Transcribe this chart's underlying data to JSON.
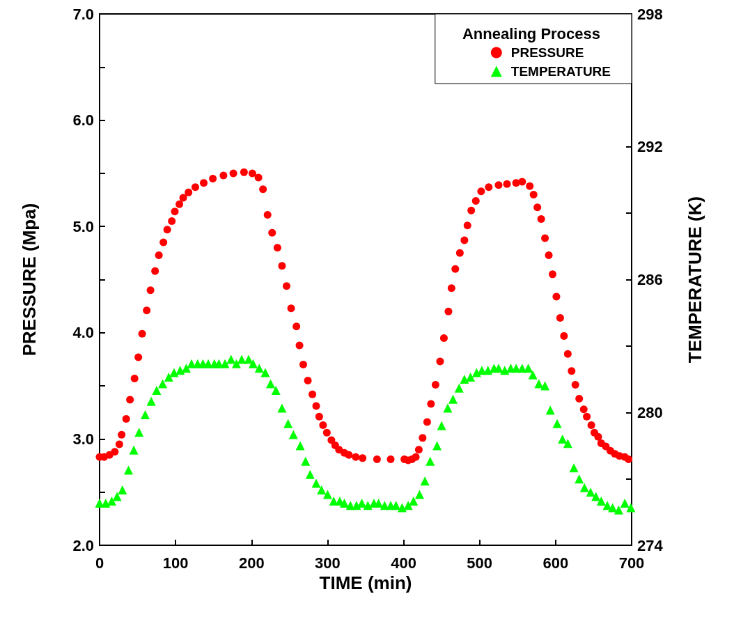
{
  "chart_data": {
    "type": "scatter",
    "xlabel": "TIME (min)",
    "ylabel": "PRESSURE (Mpa)",
    "y2label": "TEMPERATURE (K)",
    "legend_title": "Annealing Process",
    "legend": "top right",
    "grid": false,
    "xlim": [
      0,
      700
    ],
    "xticks": [
      0,
      100,
      200,
      300,
      400,
      500,
      600,
      700
    ],
    "ylim": [
      2,
      7
    ],
    "yticks": [
      {
        "value": 2,
        "label": "2.0"
      },
      {
        "value": 2.5,
        "label": null
      },
      {
        "value": 3,
        "label": "3.0"
      },
      {
        "value": 3.5,
        "label": null
      },
      {
        "value": 4,
        "label": "4.0"
      },
      {
        "value": 4.5,
        "label": null
      },
      {
        "value": 5,
        "label": "5.0"
      },
      {
        "value": 5.5,
        "label": null
      },
      {
        "value": 6,
        "label": "6.0"
      },
      {
        "value": 6.5,
        "label": null
      },
      {
        "value": 7,
        "label": "7.0"
      }
    ],
    "y2lim": [
      274,
      298
    ],
    "y2ticks": [
      274,
      {
        "value": 277,
        "label": null
      },
      280,
      {
        "value": 283,
        "label": null
      },
      286,
      {
        "value": 289,
        "label": null
      },
      292,
      {
        "value": 295,
        "label": null
      },
      298
    ],
    "series": [
      {
        "name": "PRESSURE",
        "color": "#ff0000",
        "marker": "circle",
        "x": [
          0,
          6,
          13,
          20,
          26,
          29,
          35,
          40,
          46,
          51,
          56,
          62,
          67,
          73,
          78,
          84,
          89,
          95,
          99,
          105,
          110,
          117,
          126,
          137,
          149,
          163,
          176,
          190,
          201,
          209,
          215,
          221,
          227,
          234,
          240,
          246,
          252,
          259,
          263,
          268,
          274,
          280,
          285,
          289,
          294,
          299,
          305,
          310,
          315,
          322,
          328,
          337,
          346,
          365,
          383,
          401,
          406,
          411,
          416,
          420,
          425,
          431,
          436,
          442,
          448,
          453,
          459,
          463,
          468,
          474,
          480,
          484,
          489,
          495,
          502,
          512,
          525,
          536,
          548,
          556,
          566,
          571,
          576,
          581,
          586,
          591,
          596,
          601,
          606,
          611,
          616,
          621,
          626,
          631,
          637,
          641,
          647,
          651,
          656,
          660,
          666,
          672,
          678,
          684,
          691,
          696
        ],
        "values": [
          2.83,
          2.83,
          2.85,
          2.88,
          2.95,
          3.04,
          3.19,
          3.37,
          3.57,
          3.77,
          3.99,
          4.21,
          4.4,
          4.58,
          4.73,
          4.85,
          4.97,
          5.05,
          5.14,
          5.21,
          5.27,
          5.32,
          5.37,
          5.41,
          5.45,
          5.48,
          5.5,
          5.51,
          5.5,
          5.46,
          5.35,
          5.11,
          4.94,
          4.8,
          4.63,
          4.44,
          4.23,
          4.06,
          3.88,
          3.7,
          3.55,
          3.42,
          3.31,
          3.21,
          3.13,
          3.06,
          2.99,
          2.94,
          2.9,
          2.87,
          2.85,
          2.83,
          2.82,
          2.81,
          2.81,
          2.81,
          2.8,
          2.81,
          2.83,
          2.9,
          3.01,
          3.16,
          3.33,
          3.51,
          3.73,
          3.95,
          4.2,
          4.42,
          4.6,
          4.75,
          4.87,
          5.01,
          5.15,
          5.24,
          5.33,
          5.37,
          5.39,
          5.4,
          5.41,
          5.42,
          5.38,
          5.3,
          5.18,
          5.07,
          4.89,
          4.73,
          4.55,
          4.34,
          4.14,
          3.97,
          3.8,
          3.64,
          3.51,
          3.38,
          3.28,
          3.21,
          3.13,
          3.06,
          3.02,
          2.96,
          2.93,
          2.89,
          2.86,
          2.84,
          2.83,
          2.81
        ]
      },
      {
        "name": "TEMPERATURE",
        "color": "#00ff00",
        "marker": "triangle",
        "axis": "y2",
        "x": [
          0,
          8,
          16,
          23,
          30,
          38,
          45,
          52,
          60,
          68,
          75,
          83,
          91,
          98,
          106,
          114,
          121,
          129,
          136,
          143,
          151,
          157,
          165,
          173,
          180,
          187,
          196,
          202,
          210,
          218,
          225,
          232,
          240,
          248,
          255,
          264,
          271,
          277,
          285,
          292,
          300,
          308,
          316,
          322,
          330,
          338,
          345,
          353,
          361,
          367,
          375,
          383,
          390,
          398,
          406,
          413,
          421,
          428,
          435,
          444,
          450,
          458,
          465,
          473,
          480,
          488,
          496,
          503,
          511,
          519,
          525,
          533,
          541,
          548,
          556,
          564,
          570,
          578,
          586,
          593,
          602,
          609,
          616,
          624,
          631,
          638,
          646,
          653,
          660,
          668,
          675,
          683,
          691,
          699
        ],
        "values": [
          275.9,
          275.9,
          276.0,
          276.2,
          276.5,
          277.4,
          278.3,
          279.1,
          279.9,
          280.5,
          281.0,
          281.3,
          281.6,
          281.8,
          281.9,
          282.0,
          282.2,
          282.2,
          282.2,
          282.2,
          282.2,
          282.2,
          282.2,
          282.4,
          282.2,
          282.4,
          282.4,
          282.2,
          282.0,
          281.8,
          281.3,
          281.0,
          280.2,
          279.5,
          279.0,
          278.5,
          277.8,
          277.2,
          276.8,
          276.5,
          276.3,
          276.0,
          276.0,
          275.9,
          275.8,
          275.8,
          275.9,
          275.8,
          275.9,
          275.9,
          275.8,
          275.8,
          275.8,
          275.7,
          275.8,
          276.0,
          276.3,
          276.9,
          277.8,
          278.5,
          279.4,
          280.2,
          280.6,
          281.1,
          281.5,
          281.6,
          281.8,
          281.9,
          281.9,
          282.0,
          282.0,
          281.9,
          282.0,
          282.0,
          282.0,
          282.0,
          281.7,
          281.3,
          281.2,
          280.1,
          279.5,
          278.8,
          278.6,
          277.5,
          277.0,
          276.6,
          276.4,
          276.2,
          276.0,
          275.8,
          275.7,
          275.6,
          275.9,
          275.7
        ]
      }
    ]
  }
}
